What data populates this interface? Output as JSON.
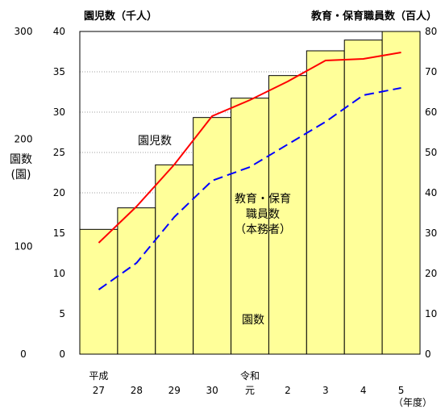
{
  "chart_data": {
    "type": "bar+line",
    "categories": [
      "27",
      "28",
      "29",
      "30",
      "元",
      "2",
      "3",
      "4",
      "5"
    ],
    "era_labels": [
      "平成",
      "",
      "",
      "",
      "令和",
      "",
      "",
      "",
      ""
    ],
    "year_unit_label": "（年度）",
    "left_axis_title": "園児数（千人）",
    "right_axis_title": "教育・保育職員数（百人）",
    "kindergarten_axis_title": [
      "園数",
      "(園)"
    ],
    "left_ticks": [
      "0",
      "5",
      "10",
      "15",
      "20",
      "25",
      "30",
      "35",
      "40"
    ],
    "right_ticks": [
      "0",
      "10",
      "20",
      "30",
      "40",
      "50",
      "60",
      "70",
      "80"
    ],
    "kindergarten_ticks": [
      "0",
      "100",
      "200",
      "300"
    ],
    "ylim_left": [
      0,
      40
    ],
    "ylim_right": [
      0,
      80
    ],
    "ylim_kindergartens": [
      0,
      300
    ],
    "series": [
      {
        "name": "園数",
        "kind": "bar",
        "axis": "kindergartens",
        "values": [
          116,
          136,
          176,
          220,
          238,
          259,
          282,
          292,
          300
        ],
        "color": "#ffff99"
      },
      {
        "name": "園児数",
        "kind": "line",
        "axis": "left",
        "values": [
          13.8,
          18.3,
          23.5,
          29.5,
          31.5,
          33.8,
          36.4,
          36.6,
          37.4
        ],
        "color": "#ff0000"
      },
      {
        "name": "教育・保育職員数（本務者）",
        "kind": "dashed-line",
        "axis": "right",
        "values": [
          16,
          22.6,
          34,
          43,
          46.4,
          52,
          57.6,
          64.2,
          66
        ],
        "color": "#0000ff"
      }
    ],
    "annotations": {
      "children": "園児数",
      "staff": [
        "教育・保育",
        "職員数",
        "（本務者）"
      ],
      "kindergartens": "園数"
    }
  }
}
